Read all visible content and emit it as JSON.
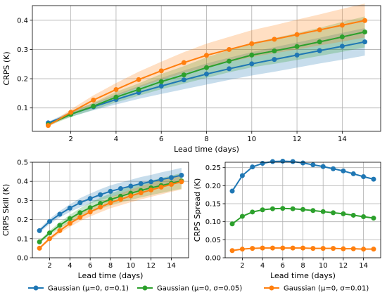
{
  "chart_data": [
    {
      "type": "line",
      "xlabel": "Lead time (days)",
      "ylabel": "CRPS (K)",
      "xlim": [
        0.3,
        15.7
      ],
      "ylim": [
        0.02,
        0.45
      ],
      "xticks": [
        "2",
        "4",
        "6",
        "8",
        "10",
        "12",
        "14"
      ],
      "yticks": [
        "0.1",
        "0.2",
        "0.3",
        "0.4"
      ],
      "grid": true,
      "x": [
        1,
        2,
        3,
        4,
        5,
        6,
        7,
        8,
        9,
        10,
        11,
        12,
        13,
        14,
        15
      ],
      "series": [
        {
          "name": "Gaussian (μ=0, σ=0.1)",
          "color": "#1f77b4",
          "values": [
            0.049,
            0.079,
            0.104,
            0.129,
            0.153,
            0.175,
            0.196,
            0.216,
            0.234,
            0.251,
            0.266,
            0.281,
            0.296,
            0.311,
            0.326
          ],
          "lower": [
            0.045,
            0.07,
            0.092,
            0.112,
            0.131,
            0.148,
            0.164,
            0.18,
            0.196,
            0.211,
            0.224,
            0.238,
            0.252,
            0.265,
            0.279
          ],
          "upper": [
            0.053,
            0.088,
            0.116,
            0.146,
            0.175,
            0.203,
            0.228,
            0.252,
            0.272,
            0.291,
            0.308,
            0.324,
            0.34,
            0.357,
            0.373
          ]
        },
        {
          "name": "Gaussian (μ=0, σ=0.05)",
          "color": "#2ca02c",
          "values": [
            0.043,
            0.078,
            0.106,
            0.137,
            0.163,
            0.19,
            0.213,
            0.238,
            0.26,
            0.281,
            0.295,
            0.31,
            0.326,
            0.343,
            0.36
          ],
          "lower": [
            0.039,
            0.069,
            0.094,
            0.119,
            0.142,
            0.164,
            0.183,
            0.203,
            0.222,
            0.239,
            0.251,
            0.264,
            0.278,
            0.292,
            0.307
          ],
          "upper": [
            0.047,
            0.087,
            0.118,
            0.155,
            0.184,
            0.216,
            0.243,
            0.273,
            0.298,
            0.323,
            0.339,
            0.356,
            0.374,
            0.394,
            0.413
          ]
        },
        {
          "name": "Gaussian (μ=0, σ=0.01)",
          "color": "#ff7f0e",
          "values": [
            0.04,
            0.085,
            0.127,
            0.163,
            0.197,
            0.227,
            0.255,
            0.28,
            0.3,
            0.32,
            0.335,
            0.351,
            0.367,
            0.383,
            0.399
          ],
          "lower": [
            0.036,
            0.075,
            0.111,
            0.141,
            0.17,
            0.196,
            0.219,
            0.24,
            0.257,
            0.274,
            0.287,
            0.3,
            0.314,
            0.327,
            0.341
          ],
          "upper": [
            0.044,
            0.095,
            0.143,
            0.185,
            0.224,
            0.258,
            0.291,
            0.32,
            0.343,
            0.366,
            0.383,
            0.402,
            0.42,
            0.439,
            0.457
          ]
        }
      ]
    },
    {
      "type": "line",
      "xlabel": "Lead time (days)",
      "ylabel": "CRPS Skill (K)",
      "xlim": [
        0.3,
        15.7
      ],
      "ylim": [
        0.0,
        0.5
      ],
      "xticks": [
        "2",
        "4",
        "6",
        "8",
        "10",
        "12",
        "14"
      ],
      "yticks": [
        "0.0",
        "0.1",
        "0.2",
        "0.3",
        "0.4",
        "0.5"
      ],
      "grid": true,
      "x": [
        1,
        2,
        3,
        4,
        5,
        6,
        7,
        8,
        9,
        10,
        11,
        12,
        13,
        14,
        15
      ],
      "series": [
        {
          "name": "Gaussian (μ=0, σ=0.1)",
          "color": "#1f77b4",
          "values": [
            0.142,
            0.19,
            0.228,
            0.26,
            0.288,
            0.31,
            0.33,
            0.348,
            0.362,
            0.375,
            0.388,
            0.398,
            0.41,
            0.42,
            0.432
          ],
          "lower": [
            0.132,
            0.176,
            0.211,
            0.24,
            0.264,
            0.284,
            0.301,
            0.317,
            0.33,
            0.342,
            0.353,
            0.362,
            0.373,
            0.382,
            0.393
          ],
          "upper": [
            0.152,
            0.204,
            0.245,
            0.28,
            0.312,
            0.336,
            0.359,
            0.379,
            0.394,
            0.408,
            0.423,
            0.434,
            0.447,
            0.458,
            0.471
          ]
        },
        {
          "name": "Gaussian (μ=0, σ=0.05)",
          "color": "#2ca02c",
          "values": [
            0.083,
            0.13,
            0.17,
            0.205,
            0.236,
            0.262,
            0.285,
            0.305,
            0.322,
            0.338,
            0.352,
            0.366,
            0.378,
            0.39,
            0.402
          ],
          "lower": [
            0.075,
            0.118,
            0.154,
            0.185,
            0.213,
            0.236,
            0.256,
            0.274,
            0.289,
            0.303,
            0.316,
            0.328,
            0.339,
            0.35,
            0.361
          ],
          "upper": [
            0.091,
            0.142,
            0.186,
            0.225,
            0.259,
            0.288,
            0.314,
            0.336,
            0.355,
            0.373,
            0.388,
            0.404,
            0.417,
            0.43,
            0.443
          ]
        },
        {
          "name": "Gaussian (μ=0, σ=0.01)",
          "color": "#ff7f0e",
          "values": [
            0.05,
            0.1,
            0.142,
            0.18,
            0.212,
            0.24,
            0.265,
            0.288,
            0.306,
            0.324,
            0.34,
            0.355,
            0.37,
            0.384,
            0.398
          ],
          "lower": [
            0.044,
            0.09,
            0.128,
            0.162,
            0.191,
            0.216,
            0.238,
            0.259,
            0.275,
            0.291,
            0.305,
            0.319,
            0.332,
            0.345,
            0.357
          ],
          "upper": [
            0.056,
            0.11,
            0.156,
            0.198,
            0.233,
            0.264,
            0.292,
            0.317,
            0.337,
            0.357,
            0.375,
            0.391,
            0.408,
            0.423,
            0.439
          ]
        }
      ]
    },
    {
      "type": "line",
      "xlabel": "Lead time (days)",
      "ylabel": "CRPS Spread (K)",
      "xlim": [
        0.3,
        15.7
      ],
      "ylim": [
        0.0,
        0.265
      ],
      "xticks": [
        "2",
        "4",
        "6",
        "8",
        "10",
        "12",
        "14"
      ],
      "yticks": [
        "0.00",
        "0.05",
        "0.10",
        "0.15",
        "0.20",
        "0.25"
      ],
      "grid": true,
      "x": [
        1,
        2,
        3,
        4,
        5,
        6,
        7,
        8,
        9,
        10,
        11,
        12,
        13,
        14,
        15
      ],
      "series": [
        {
          "name": "Gaussian (μ=0, σ=0.1)",
          "color": "#1f77b4",
          "values": [
            0.185,
            0.228,
            0.252,
            0.262,
            0.267,
            0.268,
            0.267,
            0.263,
            0.258,
            0.253,
            0.247,
            0.241,
            0.233,
            0.225,
            0.218
          ]
        },
        {
          "name": "Gaussian (μ=0, σ=0.05)",
          "color": "#2ca02c",
          "values": [
            0.094,
            0.115,
            0.127,
            0.133,
            0.136,
            0.137,
            0.136,
            0.134,
            0.131,
            0.128,
            0.125,
            0.122,
            0.118,
            0.114,
            0.11
          ]
        },
        {
          "name": "Gaussian (μ=0, σ=0.01)",
          "color": "#ff7f0e",
          "values": [
            0.02,
            0.024,
            0.026,
            0.027,
            0.027,
            0.027,
            0.027,
            0.027,
            0.026,
            0.026,
            0.026,
            0.025,
            0.025,
            0.024,
            0.024
          ]
        }
      ]
    }
  ],
  "legend": [
    {
      "label": "Gaussian (μ=0, σ=0.1)",
      "color": "#1f77b4"
    },
    {
      "label": "Gaussian (μ=0, σ=0.05)",
      "color": "#2ca02c"
    },
    {
      "label": "Gaussian (μ=0, σ=0.01)",
      "color": "#ff7f0e"
    }
  ]
}
